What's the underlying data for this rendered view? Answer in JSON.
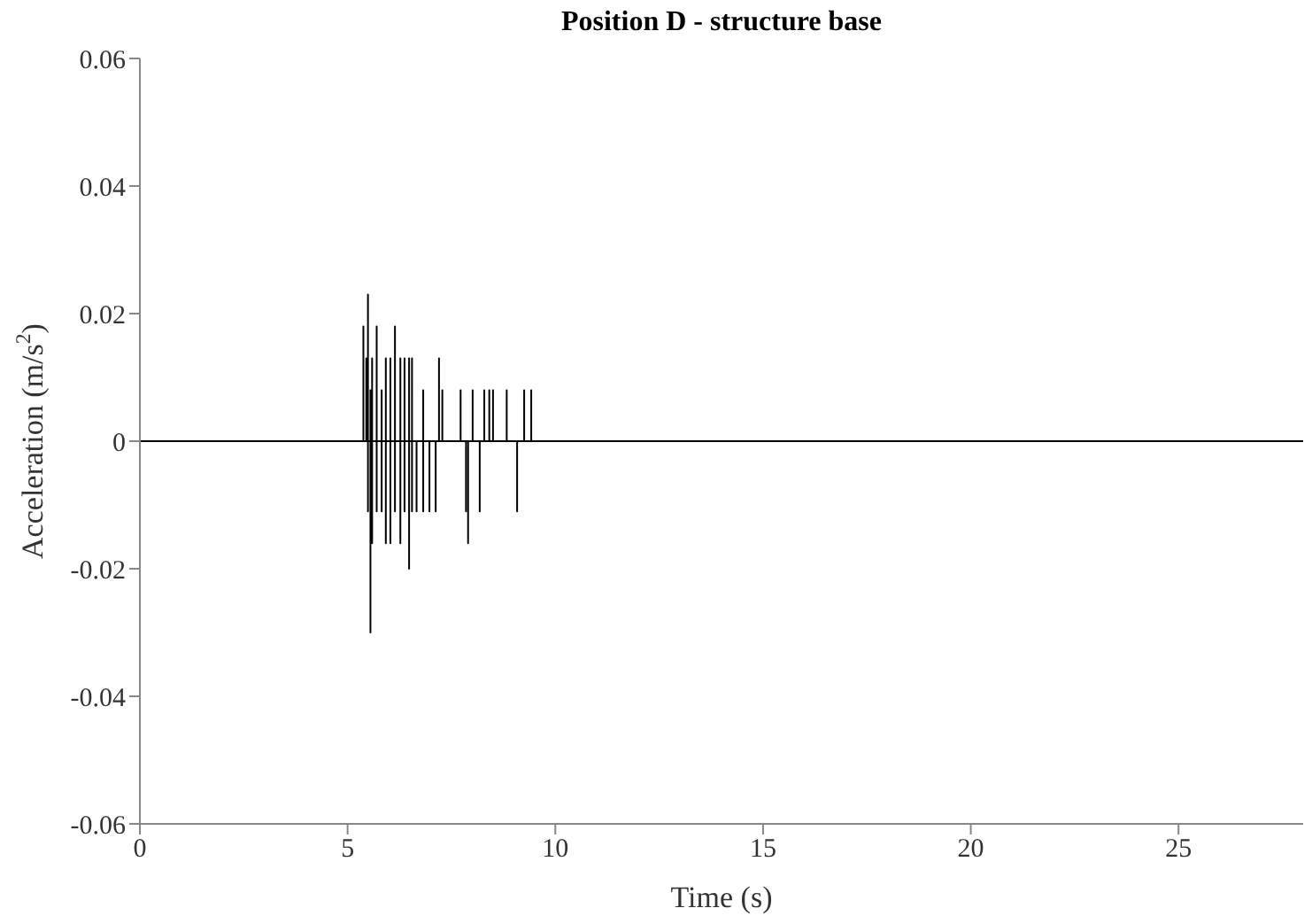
{
  "chart_data": {
    "type": "line",
    "title": "Position D - structure base",
    "xlabel": "Time (s)",
    "ylabel": "Acceleration (m/s$^{2}$)",
    "xlim": [
      0,
      28
    ],
    "xticks": [
      0,
      5,
      10,
      15,
      20,
      25
    ],
    "ylim": [
      -0.06,
      0.06
    ],
    "yticks": [
      -0.06,
      -0.04,
      -0.02,
      0,
      0.02,
      0.04,
      0.06
    ],
    "series": [
      {
        "color": "#000000",
        "x": [
          0,
          5.38,
          5.38,
          5.38,
          5.38,
          5.45,
          5.45,
          5.45,
          5.45,
          5.49,
          5.49,
          5.49,
          5.49,
          5.55,
          5.55,
          5.55,
          5.55,
          5.59,
          5.59,
          5.59,
          5.59,
          5.7,
          5.7,
          5.7,
          5.7,
          5.82,
          5.82,
          5.82,
          5.82,
          5.92,
          5.92,
          5.92,
          5.92,
          6.03,
          6.03,
          6.03,
          6.03,
          6.14,
          6.14,
          6.14,
          6.14,
          6.27,
          6.27,
          6.27,
          6.27,
          6.37,
          6.37,
          6.37,
          6.37,
          6.48,
          6.48,
          6.48,
          6.48,
          6.55,
          6.55,
          6.55,
          6.55,
          6.66,
          6.66,
          6.66,
          6.66,
          6.82,
          6.82,
          6.82,
          6.82,
          6.97,
          6.97,
          6.97,
          6.97,
          7.12,
          7.12,
          7.12,
          7.12,
          7.2,
          7.2,
          7.2,
          7.2,
          7.28,
          7.28,
          7.28,
          7.28,
          7.72,
          7.72,
          7.72,
          7.72,
          7.85,
          7.85,
          7.85,
          7.85,
          7.9,
          7.9,
          7.9,
          7.9,
          8.01,
          8.01,
          8.01,
          8.01,
          8.18,
          8.18,
          8.18,
          8.18,
          8.29,
          8.29,
          8.29,
          8.29,
          8.41,
          8.41,
          8.41,
          8.41,
          8.5,
          8.5,
          8.5,
          8.5,
          8.83,
          8.83,
          8.83,
          8.83,
          9.08,
          9.08,
          9.08,
          9.08,
          9.25,
          9.25,
          9.25,
          9.25,
          9.42,
          9.42,
          9.42,
          9.42,
          28
        ],
        "values": [
          0,
          0,
          0.018,
          0,
          0,
          0,
          0.013,
          0,
          0,
          0,
          0.023,
          -0.011,
          0,
          0,
          0.008,
          -0.03,
          0,
          0,
          0.013,
          -0.016,
          0,
          0,
          0.018,
          -0.011,
          0,
          0,
          0.008,
          -0.011,
          0,
          0,
          0.013,
          -0.016,
          0,
          0,
          0.013,
          -0.016,
          0,
          0,
          0.018,
          -0.011,
          0,
          0,
          0.013,
          -0.016,
          0,
          0,
          0.013,
          -0.011,
          0,
          0,
          0.013,
          -0.02,
          0,
          0,
          0.013,
          -0.011,
          0,
          0,
          0,
          -0.011,
          0,
          0,
          0.008,
          -0.011,
          0,
          0,
          0,
          -0.011,
          0,
          0,
          0,
          -0.011,
          0,
          0,
          0.013,
          0,
          0,
          0,
          0.008,
          0,
          0,
          0,
          0.008,
          0,
          0,
          0,
          0,
          -0.011,
          0,
          0,
          0,
          -0.016,
          0,
          0,
          0.008,
          0,
          0,
          0,
          0,
          -0.011,
          0,
          0,
          0.008,
          0,
          0,
          0,
          0.008,
          0,
          0,
          0,
          0.008,
          0,
          0,
          0,
          0.008,
          0,
          0,
          0,
          0,
          -0.011,
          0,
          0,
          0.008,
          0,
          0,
          0,
          0.008,
          0,
          0,
          0
        ]
      }
    ]
  }
}
